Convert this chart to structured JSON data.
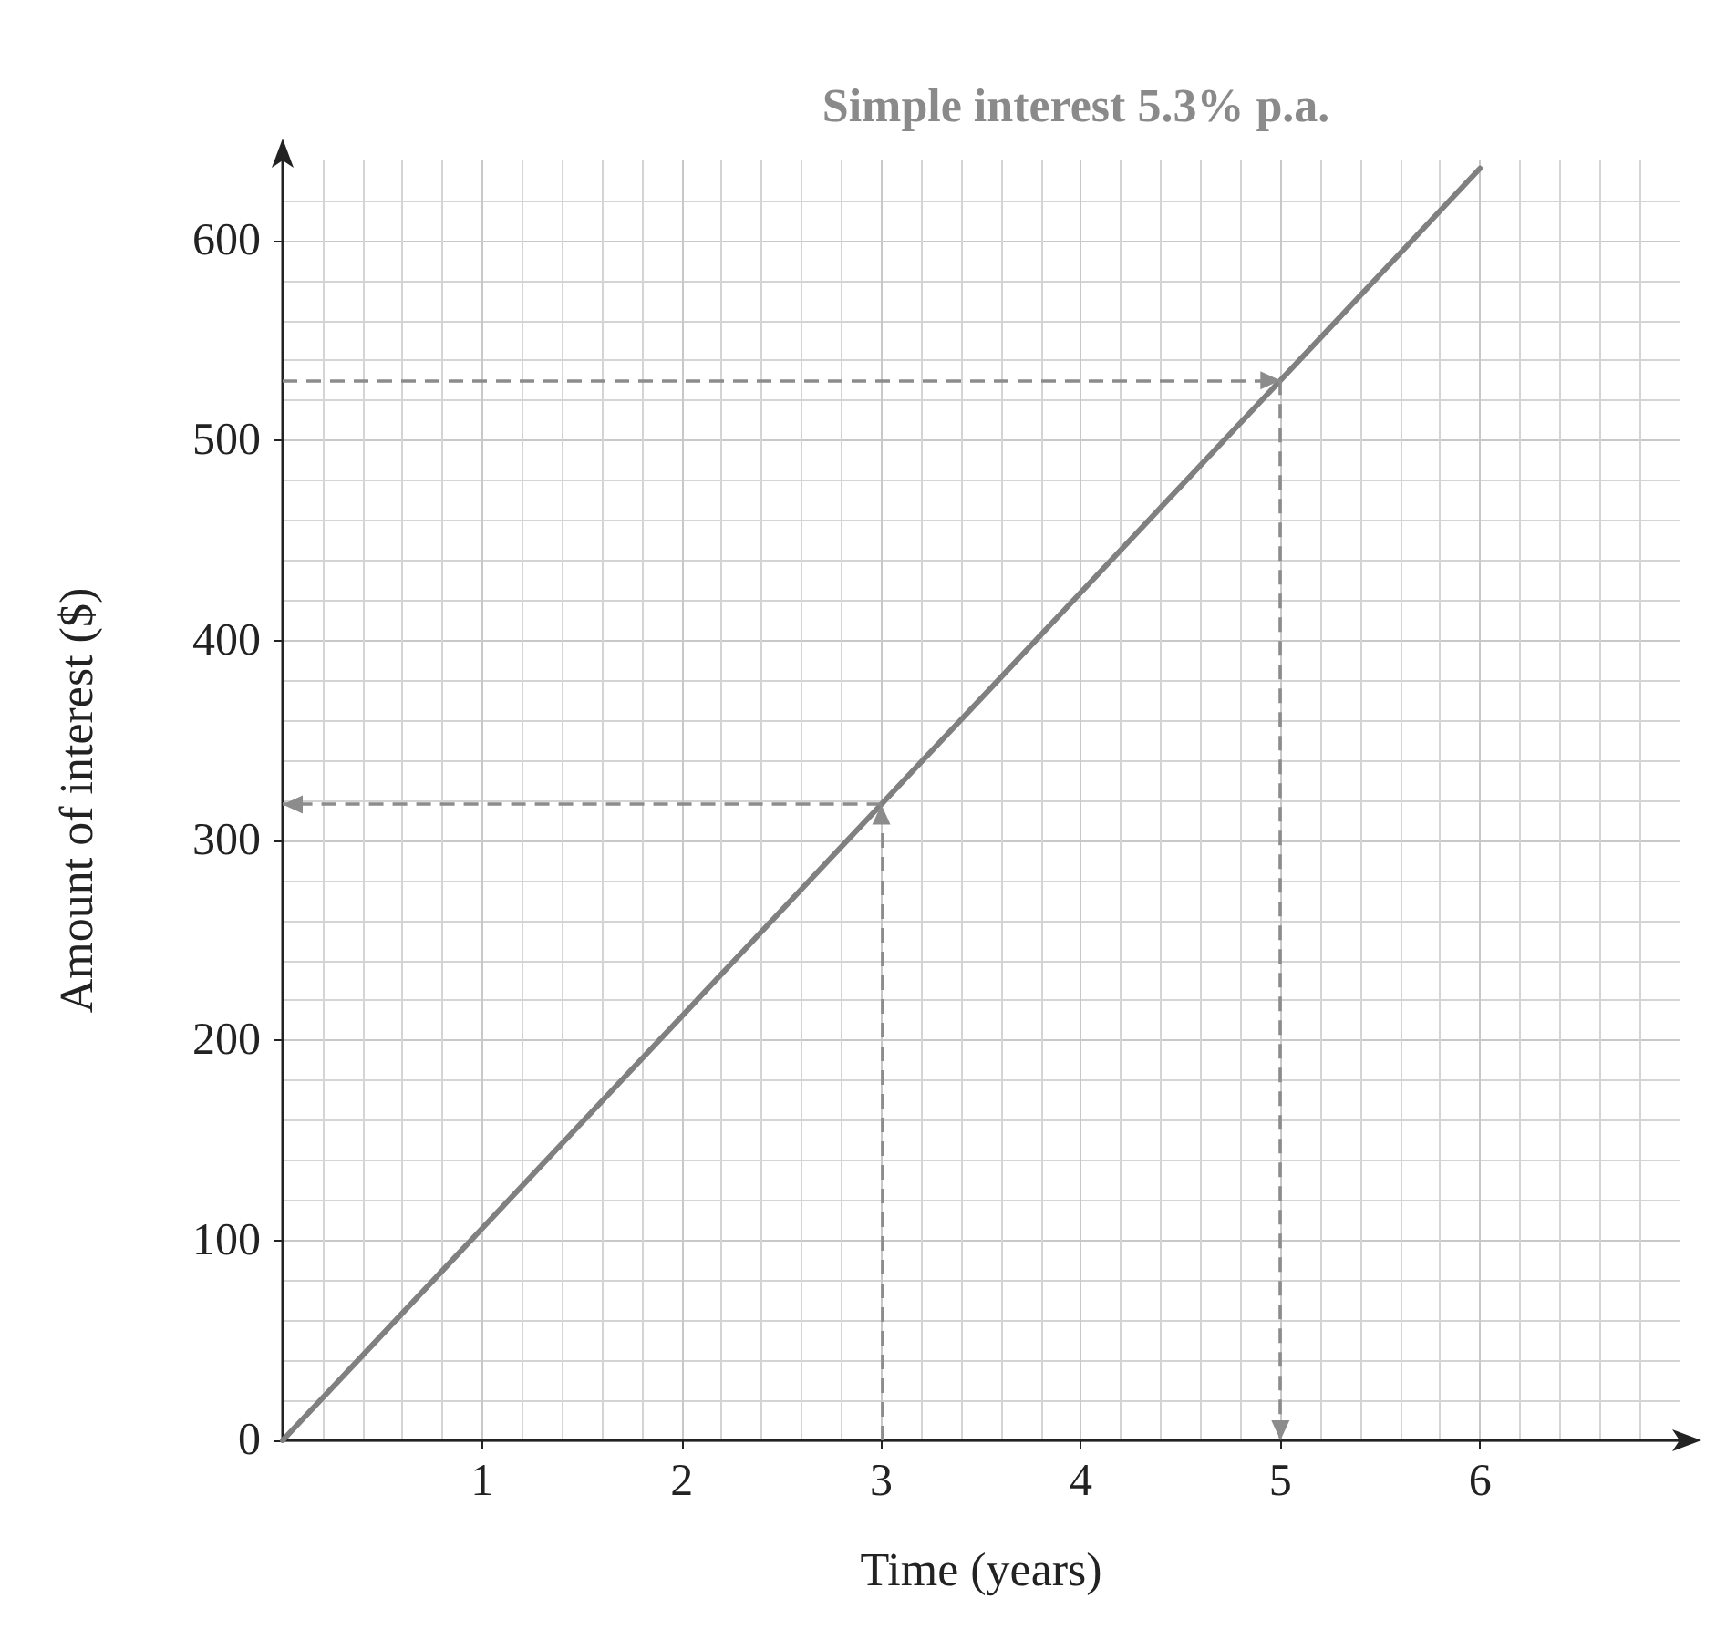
{
  "chart_data": {
    "type": "line",
    "title": "Simple interest 5.3% p.a.",
    "xlabel": "Time (years)",
    "ylabel": "Amount of interest ($)",
    "xlim": [
      0,
      7
    ],
    "xticks": [
      1,
      2,
      3,
      4,
      5,
      6
    ],
    "ylim": [
      0,
      640
    ],
    "yticks": [
      0,
      100,
      200,
      300,
      400,
      500,
      600
    ],
    "grid": true,
    "series": [
      {
        "color": "#808080",
        "x": [
          0,
          6
        ],
        "values": [
          0,
          636
        ]
      }
    ],
    "ref_lines": [
      {
        "axis": "x",
        "value": 3,
        "color": "#8c8c8c",
        "line_style": "dashed"
      },
      {
        "axis": "y",
        "value": 318,
        "color": "#8c8c8c",
        "line_style": "dashed"
      },
      {
        "axis": "y",
        "value": 530,
        "color": "#8c8c8c",
        "line_style": "dashed"
      },
      {
        "axis": "x",
        "value": 5,
        "color": "#8c8c8c",
        "line_style": "dashed"
      }
    ]
  }
}
